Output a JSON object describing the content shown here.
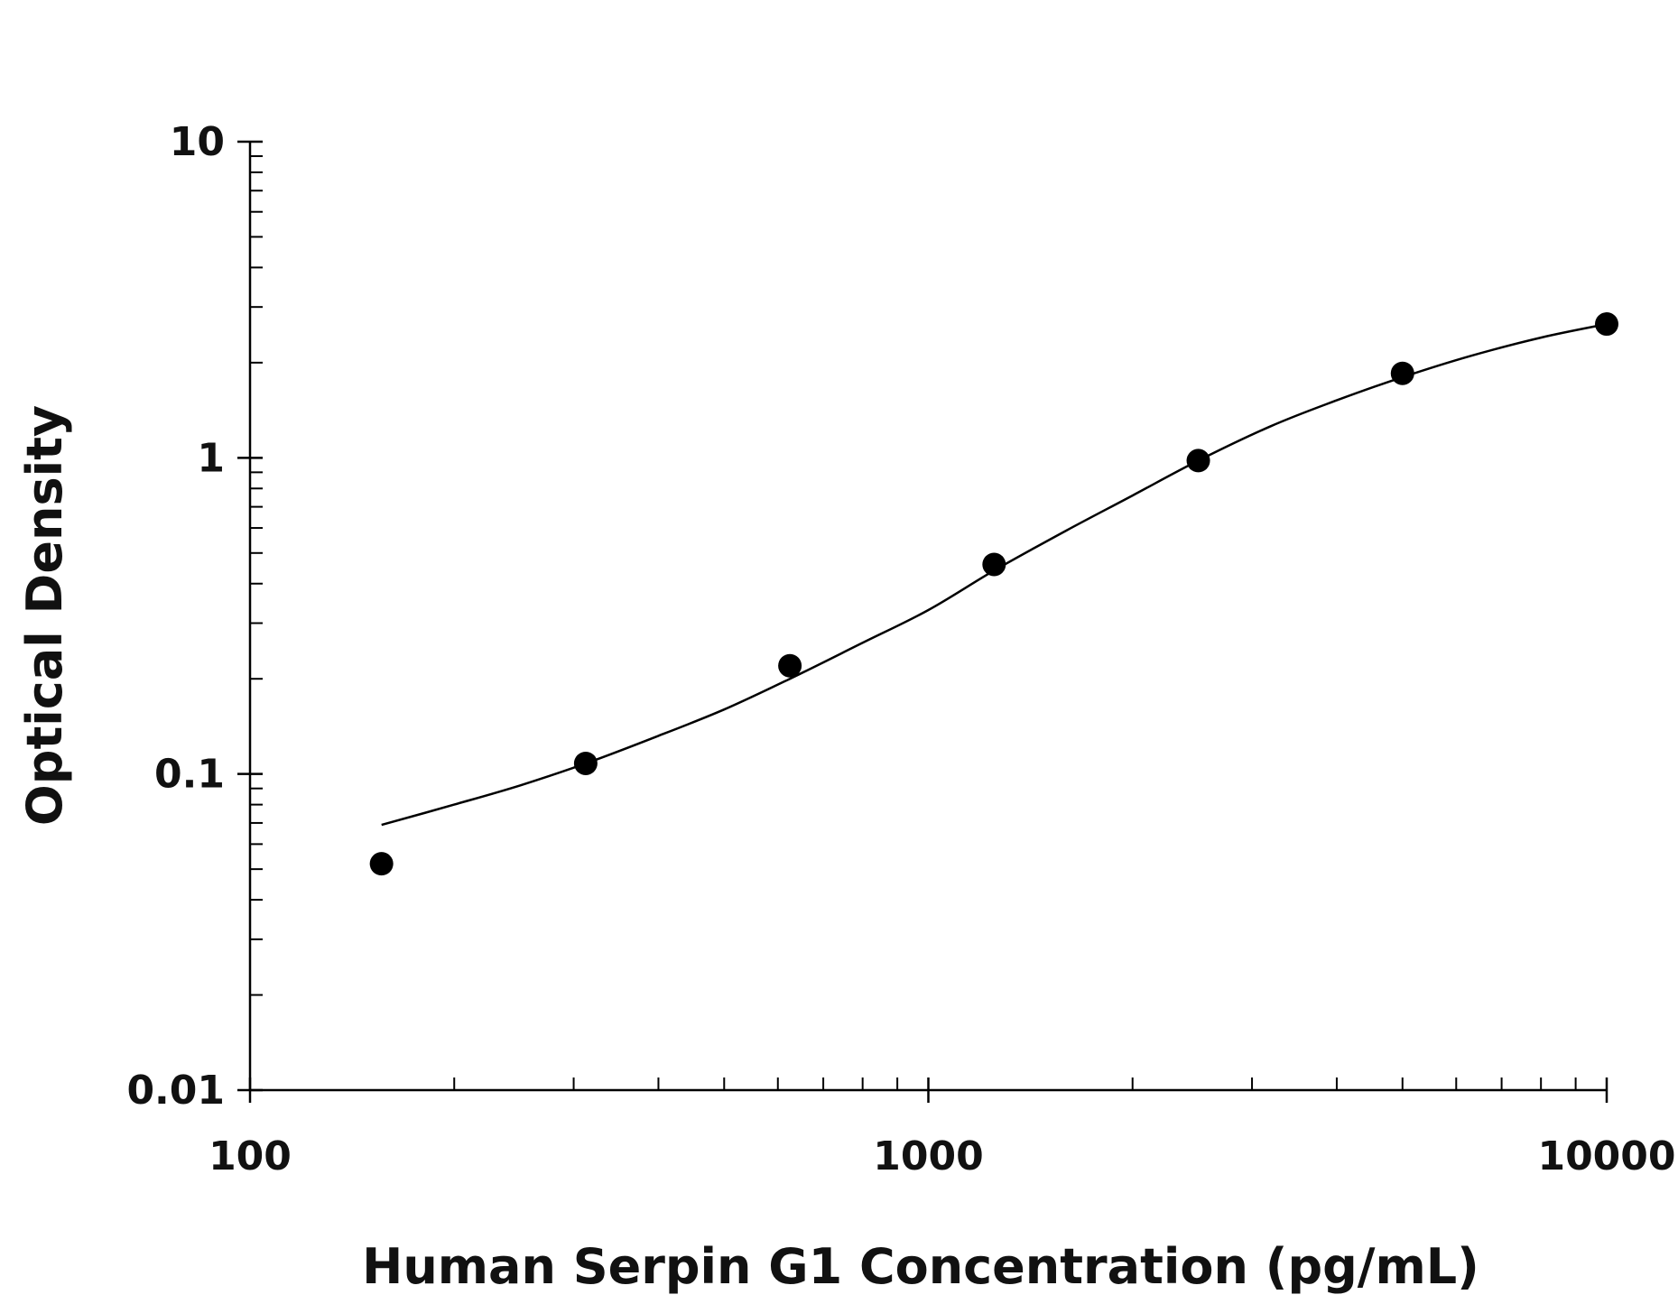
{
  "chart_data": {
    "type": "scatter",
    "title": "",
    "xlabel": "Human Serpin G1 Concentration (pg/mL)",
    "ylabel": "Optical Density",
    "x_scale": "log",
    "y_scale": "log",
    "xlim": [
      100,
      10000
    ],
    "ylim": [
      0.01,
      10
    ],
    "x_ticks": [
      "100",
      "1000",
      "10000"
    ],
    "y_ticks": [
      "0.01",
      "0.1",
      "1",
      "10"
    ],
    "grid": false,
    "legend": "none",
    "colors": {
      "points": "#000000",
      "curve": "#000000",
      "axis": "#000000"
    },
    "series": [
      {
        "type": "scatter",
        "x": [
          156.25,
          312.5,
          625,
          1250,
          2500,
          5000,
          10000
        ],
        "y": [
          0.052,
          0.108,
          0.22,
          0.46,
          0.98,
          1.85,
          2.65
        ]
      },
      {
        "type": "line",
        "x": [
          156.25,
          200,
          250,
          312.5,
          400,
          500,
          625,
          800,
          1000,
          1250,
          1600,
          2000,
          2500,
          3200,
          4000,
          5000,
          6300,
          8000,
          10000
        ],
        "y": [
          0.069,
          0.08,
          0.092,
          0.108,
          0.132,
          0.16,
          0.2,
          0.26,
          0.33,
          0.44,
          0.59,
          0.76,
          0.98,
          1.26,
          1.52,
          1.8,
          2.1,
          2.4,
          2.65
        ]
      }
    ]
  }
}
